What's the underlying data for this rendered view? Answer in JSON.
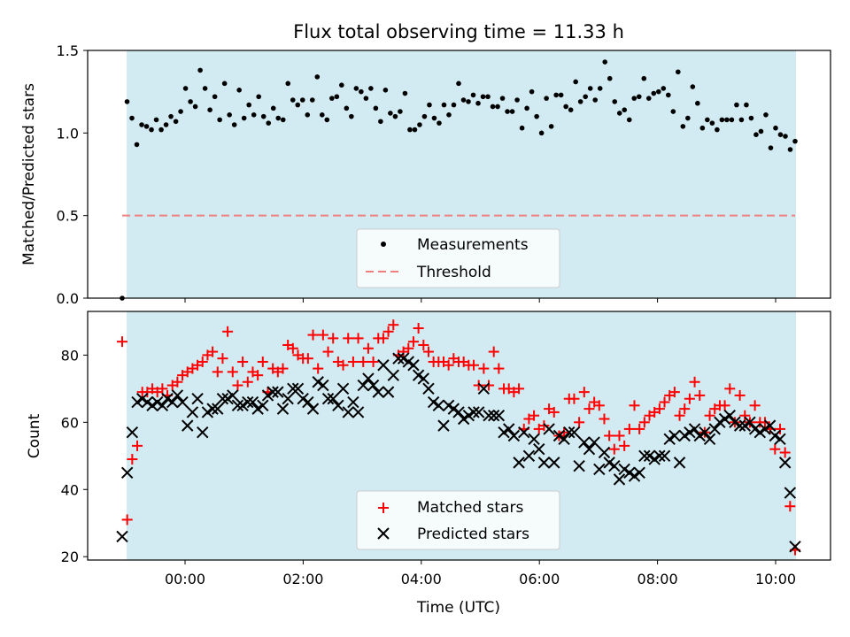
{
  "chart_data": [
    {
      "type": "scatter",
      "title": "Flux total observing time = 11.33 h",
      "xlabel": "",
      "ylabel": "Matched/Predicted stars",
      "ylim": [
        0,
        1.5
      ],
      "yticks": [
        "0.0",
        "0.5",
        "1.0",
        "1.5"
      ],
      "grid": false,
      "legend_position": "lower center",
      "shaded_span_color": "#add8e6",
      "threshold": {
        "name": "Threshold",
        "y": 0.5,
        "color": "#f08080",
        "style": "dashed"
      },
      "series": [
        {
          "name": "Measurements",
          "color": "#000000",
          "marker": "dot",
          "y": [
            0,
            1.19,
            1.09,
            0.93,
            1.05,
            1.04,
            1.02,
            1.08,
            1.02,
            1.05,
            1.1,
            1.07,
            1.13,
            1.27,
            1.19,
            1.16,
            1.38,
            1.27,
            1.14,
            1.22,
            1.08,
            1.3,
            1.11,
            1.05,
            1.26,
            1.09,
            1.17,
            1.11,
            1.22,
            1.1,
            1.06,
            1.15,
            1.09,
            1.08,
            1.3,
            1.2,
            1.17,
            1.2,
            1.11,
            1.2,
            1.34,
            1.11,
            1.08,
            1.21,
            1.22,
            1.29,
            1.15,
            1.1,
            1.27,
            1.25,
            1.21,
            1.27,
            1.15,
            1.07,
            1.26,
            1.12,
            1.1,
            1.13,
            1.24,
            1.02,
            1.02,
            1.05,
            1.1,
            1.17,
            1.09,
            1.06,
            1.17,
            1.11,
            1.17,
            1.3,
            1.2,
            1.19,
            1.23,
            1.18,
            1.22,
            1.22,
            1.16,
            1.16,
            1.21,
            1.13,
            1.13,
            1.2,
            1.03,
            1.15,
            1.25,
            1.1,
            1.0,
            1.21,
            1.04,
            1.23,
            1.23,
            1.16,
            1.14,
            1.31,
            1.19,
            1.22,
            1.27,
            1.2,
            1.27,
            1.43,
            1.33,
            1.19,
            1.12,
            1.14,
            1.08,
            1.21,
            1.22,
            1.33,
            1.21,
            1.24,
            1.25,
            1.27,
            1.23,
            1.13,
            1.37,
            1.04,
            1.09,
            1.28,
            1.18,
            1.03,
            1.08,
            1.06,
            1.02,
            1.08,
            1.08,
            1.08,
            1.17,
            1.08,
            1.17,
            1.09,
            0.99,
            1.01,
            1.11,
            0.91,
            1.03,
            0.99,
            0.98,
            0.9,
            0.95
          ]
        }
      ]
    },
    {
      "type": "scatter",
      "title": "",
      "xlabel": "Time (UTC)",
      "ylabel": "Count",
      "xlim_hours": [
        -1.65,
        10.95
      ],
      "ylim": [
        19,
        93
      ],
      "xticks": [
        "00:00",
        "02:00",
        "04:00",
        "06:00",
        "08:00",
        "10:00"
      ],
      "yticks": [
        "20",
        "40",
        "60",
        "80"
      ],
      "grid": false,
      "legend_position": "lower center",
      "shaded_span_color": "#add8e6",
      "series": [
        {
          "name": "Matched stars",
          "color": "#ff0000",
          "marker": "plus",
          "y": [
            84,
            31,
            49,
            53,
            69,
            69,
            70,
            69,
            70,
            68,
            71,
            72,
            74,
            75,
            76,
            77,
            78,
            80,
            81,
            75,
            79,
            87,
            75,
            71,
            78,
            72,
            75,
            74,
            78,
            69,
            76,
            75,
            76,
            83,
            82,
            80,
            79,
            79,
            86,
            76,
            86,
            81,
            85,
            78,
            77,
            85,
            78,
            85,
            78,
            82,
            78,
            85,
            85,
            87,
            89,
            80,
            81,
            82,
            84,
            88,
            83,
            81,
            78,
            78,
            78,
            77,
            79,
            78,
            78,
            77,
            77,
            71,
            76,
            71,
            81,
            76,
            70,
            70,
            69,
            70,
            58,
            61,
            62,
            58,
            59,
            64,
            63,
            56,
            57,
            67,
            67,
            60,
            69,
            64,
            66,
            65,
            61,
            56,
            52,
            56,
            53,
            58,
            65,
            58,
            60,
            62,
            63,
            64,
            66,
            68,
            69,
            62,
            64,
            67,
            72,
            68,
            57,
            62,
            64,
            65,
            65,
            70,
            60,
            68,
            62,
            60,
            65,
            60,
            60,
            58,
            52,
            58,
            51,
            35,
            22
          ]
        },
        {
          "name": "Predicted stars",
          "color": "#000000",
          "marker": "x",
          "y": [
            26,
            45,
            57,
            66,
            67,
            66,
            65,
            66,
            65,
            67,
            66,
            68,
            66,
            59,
            63,
            67,
            57,
            63,
            64,
            64,
            67,
            67,
            68,
            65,
            65,
            66,
            66,
            64,
            65,
            68,
            69,
            69,
            64,
            67,
            70,
            70,
            67,
            66,
            64,
            72,
            71,
            67,
            67,
            65,
            70,
            63,
            66,
            63,
            71,
            73,
            71,
            69,
            77,
            69,
            74,
            79,
            79,
            78,
            77,
            74,
            73,
            70,
            66,
            65,
            59,
            65,
            64,
            63,
            61,
            62,
            63,
            63,
            70,
            62,
            62,
            62,
            57,
            58,
            56,
            48,
            57,
            50,
            55,
            52,
            48,
            58,
            48,
            56,
            55,
            57,
            57,
            47,
            54,
            52,
            54,
            46,
            51,
            48,
            47,
            43,
            46,
            45,
            44,
            45,
            50,
            50,
            49,
            50,
            50,
            55,
            56,
            48,
            56,
            57,
            58,
            56,
            57,
            55,
            58,
            60,
            61,
            62,
            60,
            59,
            59,
            60,
            58,
            57,
            58,
            59,
            56,
            55,
            48,
            39,
            23
          ]
        }
      ]
    }
  ]
}
